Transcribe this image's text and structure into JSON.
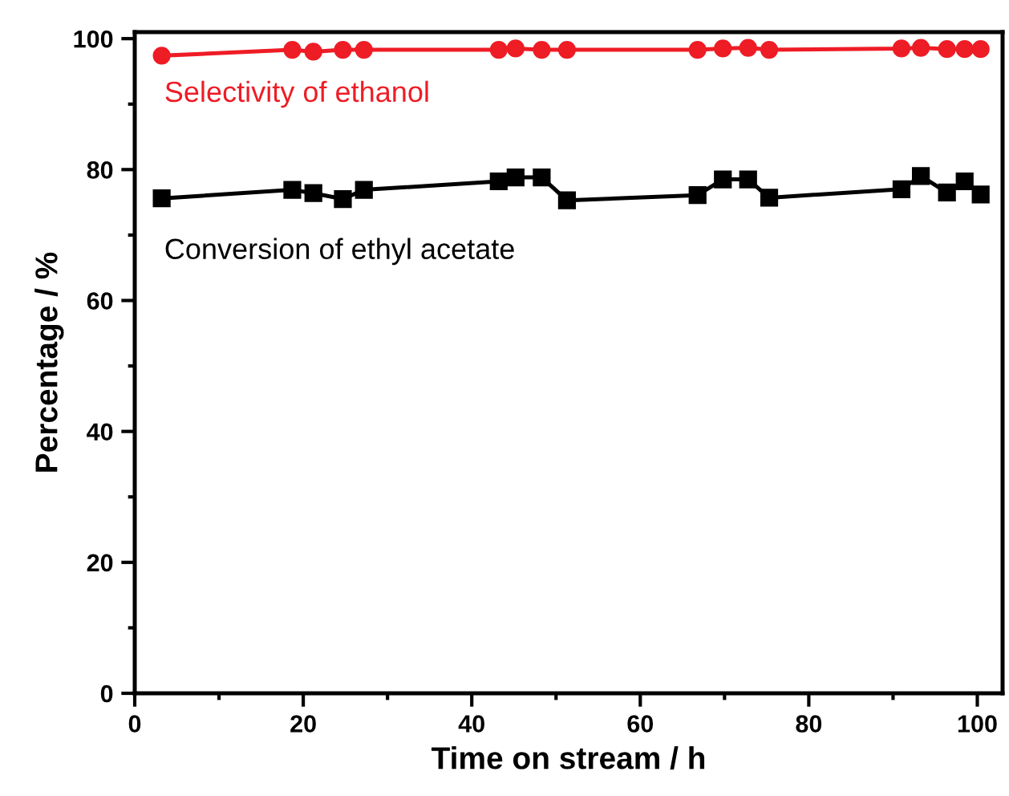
{
  "chart_data": {
    "type": "line",
    "xlabel": "Time on stream / h",
    "ylabel": "Percentage / %",
    "x": [
      3.2,
      18.7,
      21.2,
      24.7,
      27.2,
      43.2,
      45.2,
      48.3,
      51.3,
      66.8,
      69.8,
      72.8,
      75.3,
      91,
      93.3,
      96.4,
      98.5,
      100.4
    ],
    "series": [
      {
        "name": "Selectivity of ethanol",
        "color": "#ee1c25",
        "marker": "circle",
        "values": [
          97.4,
          98.3,
          98.0,
          98.3,
          98.3,
          98.3,
          98.5,
          98.3,
          98.3,
          98.3,
          98.5,
          98.6,
          98.3,
          98.5,
          98.6,
          98.4,
          98.4,
          98.4
        ]
      },
      {
        "name": "Conversion of ethyl acetate",
        "color": "#000000",
        "marker": "square",
        "values": [
          75.6,
          76.9,
          76.4,
          75.5,
          76.9,
          78.2,
          78.8,
          78.8,
          75.3,
          76.1,
          78.5,
          78.5,
          75.7,
          77.0,
          79.0,
          76.5,
          78.2,
          76.2
        ]
      }
    ],
    "xlim": [
      0,
      103
    ],
    "ylim": [
      0,
      101
    ],
    "xticks": [
      0,
      20,
      40,
      60,
      80,
      100
    ],
    "yticks": [
      0,
      20,
      40,
      60,
      80,
      100
    ],
    "grid": false,
    "legend": false,
    "line_style": "solid"
  }
}
